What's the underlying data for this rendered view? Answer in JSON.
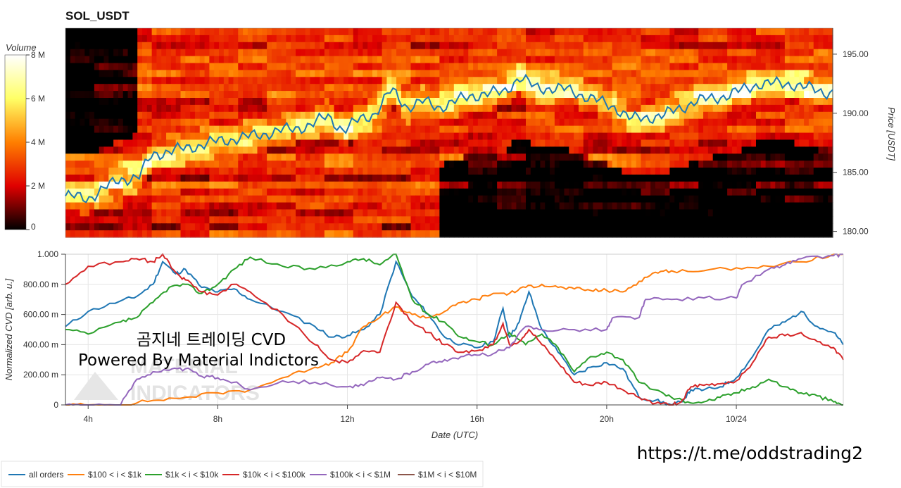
{
  "chart_data": [
    {
      "type": "heatmap",
      "title": "SOL_USDT",
      "ylabel": "Price [USDT]",
      "yticks": [
        "180.00",
        "185.00",
        "190.00",
        "195.00"
      ],
      "ylim": [
        179.5,
        197.2
      ],
      "colorbar": {
        "label": "Volume",
        "ticks": [
          "0",
          "2 M",
          "4 M",
          "6 M",
          "8 M"
        ],
        "range": [
          0,
          8000000
        ],
        "colors": [
          "#000000",
          "#e00000",
          "#ff7f00",
          "#ffff66",
          "#ffffff"
        ]
      },
      "price_line": {
        "color": "#1f77b4",
        "x_hours": [
          3.3,
          4.0,
          5.0,
          5.6,
          6.0,
          7.0,
          8.0,
          9.0,
          10.0,
          11.0,
          11.5,
          12.0,
          12.5,
          13.0,
          13.5,
          14.0,
          14.5,
          15.0,
          16.0,
          17.0,
          17.5,
          18.0,
          19.0,
          20.0,
          20.5,
          21.0,
          22.0,
          23.0,
          24.0,
          25.0,
          26.0,
          27.0
        ],
        "price": [
          183.0,
          182.8,
          184.4,
          184.6,
          186.5,
          187.0,
          187.6,
          188.0,
          188.5,
          189.0,
          189.8,
          188.5,
          189.5,
          190.0,
          192.0,
          190.5,
          191.0,
          190.5,
          191.5,
          191.8,
          193.0,
          192.2,
          192.0,
          191.0,
          190.5,
          189.5,
          189.8,
          191.0,
          191.5,
          192.5,
          192.5,
          191.8
        ]
      }
    },
    {
      "type": "line",
      "xlabel": "Date (UTC)",
      "ylabel": "Normalized CVD [arb. u.]",
      "xlim": [
        3.3,
        27.3
      ],
      "ylim": [
        0,
        1
      ],
      "xticks": [
        {
          "value": 4,
          "label": "4h"
        },
        {
          "value": 8,
          "label": "8h"
        },
        {
          "value": 12,
          "label": "12h"
        },
        {
          "value": 16,
          "label": "16h"
        },
        {
          "value": 20,
          "label": "20h"
        },
        {
          "value": 24,
          "label": "10/24"
        }
      ],
      "yticks": [
        {
          "value": 0,
          "label": "0"
        },
        {
          "value": 0.2,
          "label": "200.00 m"
        },
        {
          "value": 0.4,
          "label": "400.00 m"
        },
        {
          "value": 0.6,
          "label": "600.00 m"
        },
        {
          "value": 0.8,
          "label": "800.00 m"
        },
        {
          "value": 1,
          "label": "1.000"
        }
      ],
      "series": [
        {
          "name": "all orders",
          "color": "#1f77b4",
          "x": [
            3.3,
            4.0,
            5.0,
            5.5,
            6.0,
            6.3,
            6.7,
            7.0,
            7.5,
            8.0,
            8.5,
            9.0,
            10.0,
            11.0,
            11.5,
            12.0,
            12.5,
            13.0,
            13.5,
            14.0,
            14.5,
            15.0,
            15.5,
            16.0,
            16.5,
            16.8,
            17.0,
            17.3,
            17.6,
            18.0,
            18.5,
            19.0,
            19.5,
            20.0,
            20.5,
            21.0,
            21.5,
            22.0,
            22.3,
            22.6,
            23.0,
            23.5,
            24.0,
            24.5,
            25.0,
            25.5,
            26.0,
            26.5,
            27.0,
            27.3
          ],
          "y": [
            0.52,
            0.62,
            0.69,
            0.72,
            0.8,
            0.95,
            0.87,
            0.9,
            0.78,
            0.75,
            0.77,
            0.7,
            0.62,
            0.52,
            0.45,
            0.46,
            0.5,
            0.6,
            0.95,
            0.72,
            0.6,
            0.45,
            0.4,
            0.38,
            0.42,
            0.64,
            0.45,
            0.55,
            0.75,
            0.5,
            0.35,
            0.2,
            0.25,
            0.28,
            0.24,
            0.05,
            0.03,
            0.0,
            0.02,
            0.1,
            0.1,
            0.12,
            0.18,
            0.32,
            0.5,
            0.55,
            0.62,
            0.52,
            0.48,
            0.4
          ]
        },
        {
          "name": "$100 < i < $1k",
          "color": "#ff7f0e",
          "x": [
            3.3,
            4.0,
            5.0,
            6.0,
            7.0,
            8.0,
            9.0,
            10.0,
            11.0,
            11.5,
            12.0,
            12.5,
            13.0,
            13.5,
            14.0,
            14.5,
            15.0,
            15.5,
            16.0,
            16.5,
            17.0,
            17.5,
            18.0,
            18.5,
            19.0,
            19.5,
            20.0,
            20.5,
            21.0,
            21.5,
            22.0,
            23.0,
            24.0,
            25.0,
            26.0,
            27.0,
            27.3
          ],
          "y": [
            0.0,
            0.0,
            0.0,
            0.03,
            0.05,
            0.08,
            0.1,
            0.18,
            0.25,
            0.28,
            0.35,
            0.52,
            0.58,
            0.65,
            0.6,
            0.58,
            0.62,
            0.68,
            0.7,
            0.74,
            0.74,
            0.78,
            0.8,
            0.78,
            0.77,
            0.76,
            0.76,
            0.75,
            0.82,
            0.88,
            0.89,
            0.89,
            0.91,
            0.92,
            0.95,
            1.0,
            1.0
          ]
        },
        {
          "name": "$1k < i < $10k",
          "color": "#2ca02c",
          "x": [
            3.3,
            4.0,
            5.0,
            5.5,
            6.0,
            6.5,
            7.0,
            7.5,
            8.0,
            8.5,
            9.0,
            10.0,
            11.0,
            12.0,
            12.5,
            13.0,
            13.5,
            14.0,
            14.5,
            15.0,
            15.5,
            16.0,
            16.5,
            17.0,
            17.5,
            18.0,
            18.5,
            19.0,
            19.5,
            20.0,
            20.5,
            21.0,
            21.5,
            22.0,
            22.5,
            23.0,
            23.5,
            24.0,
            24.5,
            25.0,
            25.5,
            26.0,
            26.5,
            27.0,
            27.3
          ],
          "y": [
            0.5,
            0.47,
            0.55,
            0.58,
            0.68,
            0.78,
            0.8,
            0.74,
            0.8,
            0.9,
            0.98,
            0.92,
            0.9,
            0.95,
            0.97,
            0.93,
            1.0,
            0.7,
            0.6,
            0.55,
            0.45,
            0.42,
            0.4,
            0.48,
            0.4,
            0.47,
            0.38,
            0.22,
            0.32,
            0.35,
            0.3,
            0.15,
            0.1,
            0.05,
            0.02,
            0.02,
            0.05,
            0.08,
            0.12,
            0.17,
            0.12,
            0.08,
            0.06,
            0.02,
            0.0
          ]
        },
        {
          "name": "$10k < i < $100k",
          "color": "#d62728",
          "x": [
            3.3,
            4.0,
            5.0,
            5.5,
            6.0,
            6.3,
            6.7,
            7.0,
            7.5,
            8.0,
            8.5,
            9.0,
            10.0,
            11.0,
            11.5,
            12.0,
            12.5,
            13.0,
            13.5,
            14.0,
            14.5,
            15.0,
            15.5,
            16.0,
            16.5,
            16.8,
            17.0,
            17.3,
            17.6,
            18.0,
            18.5,
            19.0,
            19.5,
            20.0,
            20.5,
            21.0,
            21.5,
            22.0,
            22.3,
            22.6,
            23.0,
            23.5,
            24.0,
            24.5,
            25.0,
            25.5,
            26.0,
            26.5,
            27.0,
            27.3
          ],
          "y": [
            0.8,
            0.92,
            0.95,
            0.97,
            0.95,
            1.0,
            0.88,
            0.83,
            0.75,
            0.73,
            0.8,
            0.75,
            0.6,
            0.4,
            0.3,
            0.28,
            0.36,
            0.35,
            0.68,
            0.55,
            0.48,
            0.4,
            0.35,
            0.36,
            0.4,
            0.54,
            0.4,
            0.42,
            0.5,
            0.4,
            0.28,
            0.15,
            0.13,
            0.15,
            0.1,
            0.05,
            0.01,
            0.0,
            0.02,
            0.12,
            0.13,
            0.14,
            0.16,
            0.28,
            0.45,
            0.46,
            0.48,
            0.42,
            0.38,
            0.3
          ]
        },
        {
          "name": "$100k < i < $1M",
          "color": "#9467bd",
          "x": [
            3.3,
            4.0,
            5.0,
            5.5,
            6.0,
            6.5,
            7.0,
            7.5,
            8.0,
            8.5,
            9.0,
            10.0,
            11.0,
            12.0,
            12.5,
            13.0,
            13.5,
            14.0,
            14.5,
            15.0,
            15.5,
            16.0,
            16.5,
            17.0,
            17.5,
            18.0,
            19.0,
            20.0,
            20.2,
            21.0,
            21.2,
            22.0,
            23.0,
            24.0,
            24.2,
            25.0,
            25.5,
            26.0,
            27.0,
            27.3
          ],
          "y": [
            0.0,
            0.0,
            0.0,
            0.17,
            0.22,
            0.23,
            0.24,
            0.19,
            0.18,
            0.15,
            0.1,
            0.16,
            0.15,
            0.12,
            0.13,
            0.18,
            0.17,
            0.22,
            0.27,
            0.3,
            0.32,
            0.33,
            0.34,
            0.38,
            0.52,
            0.5,
            0.5,
            0.5,
            0.58,
            0.58,
            0.7,
            0.7,
            0.71,
            0.71,
            0.8,
            0.9,
            0.93,
            0.97,
            0.99,
            1.0
          ]
        },
        {
          "name": "$1M < i < $10M",
          "color": "#8c564b",
          "x": [],
          "y": []
        }
      ]
    }
  ],
  "overlay": {
    "line1": "곰지네 트레이딩 CVD",
    "line2": "Powered By Material Indictors",
    "watermark_line1": "MATERIAL",
    "watermark_line2": "INDICATORS",
    "url": "https://t.me/oddstrading2"
  }
}
